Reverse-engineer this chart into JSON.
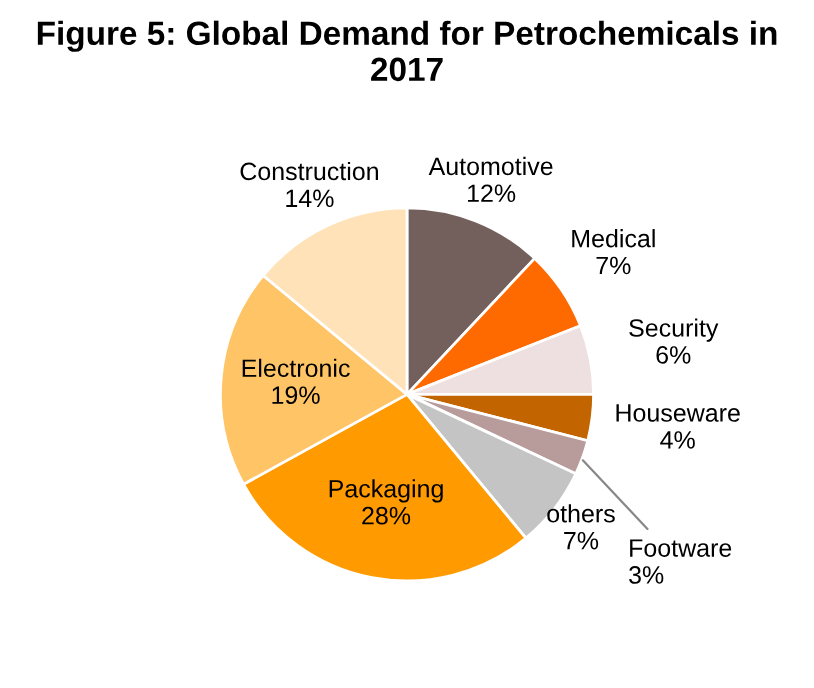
{
  "chart_data": {
    "type": "pie",
    "title": "Figure 5: Global Demand for Petrochemicals in 2017",
    "categories": [
      "Automotive",
      "Medical",
      "Security",
      "Houseware",
      "Footware",
      "others",
      "Packaging",
      "Electronic",
      "Construction"
    ],
    "values": [
      12,
      7,
      6,
      4,
      3,
      7,
      28,
      19,
      14
    ],
    "colors": [
      "#735f5b",
      "#ff6a00",
      "#eee0e0",
      "#c26400",
      "#b89c9c",
      "#c4c4c4",
      "#ff9a00",
      "#ffc466",
      "#ffe2b8"
    ],
    "value_labels": [
      "12%",
      "7%",
      "6%",
      "4%",
      "3%",
      "7%",
      "28%",
      "19%",
      "14%"
    ],
    "legend": false
  }
}
